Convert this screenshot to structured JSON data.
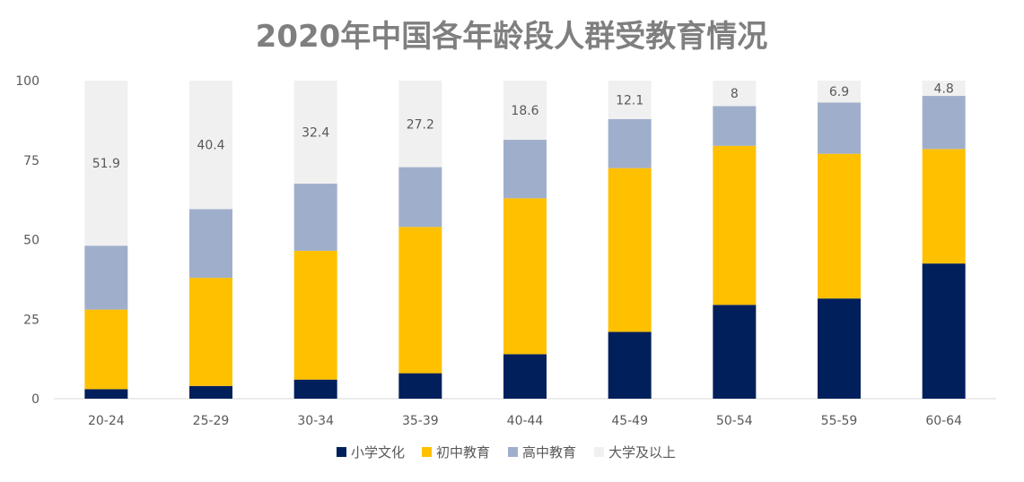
{
  "chart_data": {
    "type": "bar",
    "stacked": true,
    "title": "2020年中国各年龄段人群受教育情况",
    "categories": [
      "20-24",
      "25-29",
      "30-34",
      "35-39",
      "40-44",
      "45-49",
      "50-54",
      "55-59",
      "60-64"
    ],
    "series": [
      {
        "name": "小学文化",
        "color": "#001f5b",
        "values": [
          3,
          4,
          6,
          8,
          14,
          21,
          29.5,
          31.5,
          42.5
        ]
      },
      {
        "name": "初中教育",
        "color": "#ffc000",
        "values": [
          25,
          34,
          40.5,
          46,
          49,
          51.5,
          50,
          45.5,
          36
        ]
      },
      {
        "name": "高中教育",
        "color": "#9fafcb",
        "values": [
          20.1,
          21.6,
          21.1,
          18.8,
          18.4,
          15.4,
          12.5,
          16.1,
          16.7
        ]
      },
      {
        "name": "大学及以上",
        "color": "#f0f0f0",
        "values": [
          51.9,
          40.4,
          32.4,
          27.2,
          18.6,
          12.1,
          8,
          6.9,
          4.8
        ],
        "labels": [
          "51.9",
          "40.4",
          "32.4",
          "27.2",
          "18.6",
          "12.1",
          "8",
          "6.9",
          "4.8"
        ]
      }
    ],
    "ylim": [
      0,
      100
    ],
    "yticks": [
      "0",
      "25",
      "50",
      "75",
      "100"
    ],
    "xlabel": "",
    "ylabel": "",
    "grid": false,
    "legend_position": "bottom"
  }
}
